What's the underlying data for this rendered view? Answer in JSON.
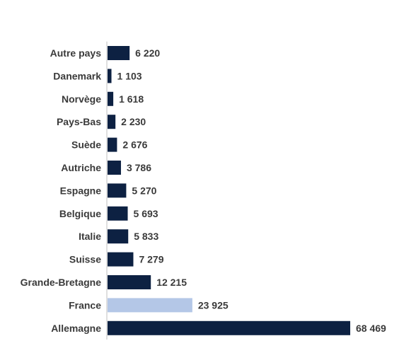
{
  "chart_data": {
    "type": "bar",
    "orientation": "horizontal",
    "title": "",
    "xlabel": "",
    "ylabel": "",
    "grid": false,
    "legend": "none",
    "categories": [
      "Autre pays",
      "Danemark",
      "Norvège",
      "Pays-Bas",
      "Suède",
      "Autriche",
      "Espagne",
      "Belgique",
      "Italie",
      "Suisse",
      "Grande-Bretagne",
      "France",
      "Allemagne"
    ],
    "values": [
      6220,
      1103,
      1618,
      2230,
      2676,
      3786,
      5270,
      5693,
      5833,
      7279,
      12215,
      23925,
      68469
    ],
    "value_labels": [
      "6 220",
      "1 103",
      "1 618",
      "2 230",
      "2 676",
      "3 786",
      "5 270",
      "5 693",
      "5 833",
      "7 279",
      "12 215",
      "23 925",
      "68 469"
    ],
    "highlight_category": "France",
    "colors": {
      "bar": "#0d2142",
      "highlight": "#b4c7e7",
      "label": "#3a3a3a",
      "axis": "#bfbfbf"
    }
  }
}
